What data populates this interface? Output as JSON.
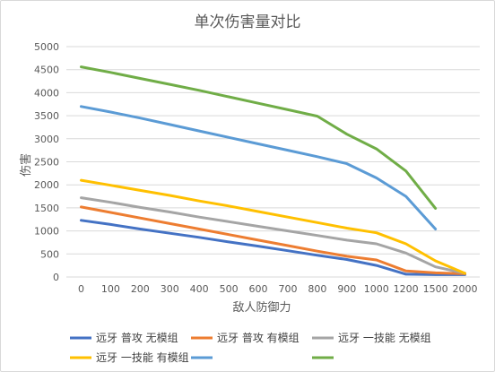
{
  "chart_data": {
    "type": "line",
    "title": "单次伤害量对比",
    "xlabel": "敌人防御力",
    "ylabel": "伤害",
    "categories": [
      "0",
      "100",
      "200",
      "300",
      "400",
      "500",
      "600",
      "700",
      "800",
      "900",
      "1000",
      "1200",
      "1500",
      "2000"
    ],
    "ylim": [
      0,
      5000
    ],
    "yticks": [
      0,
      500,
      1000,
      1500,
      2000,
      2500,
      3000,
      3500,
      4000,
      4500,
      5000
    ],
    "grid": true,
    "legend_position": "bottom",
    "series": [
      {
        "name": "远牙 普攻 无模组",
        "color": "#4472c4",
        "values": [
          1230,
          1140,
          1040,
          950,
          860,
          760,
          670,
          570,
          470,
          380,
          250,
          60,
          50,
          50
        ]
      },
      {
        "name": "远牙 普攻 有模组",
        "color": "#ed7d31",
        "values": [
          1520,
          1400,
          1280,
          1160,
          1040,
          920,
          800,
          680,
          560,
          450,
          370,
          130,
          90,
          70
        ]
      },
      {
        "name": "远牙 一技能 无模组",
        "color": "#a5a5a5",
        "values": [
          1720,
          1620,
          1510,
          1410,
          1300,
          1200,
          1100,
          1000,
          900,
          800,
          720,
          520,
          220,
          80
        ]
      },
      {
        "name": "远牙 一技能 有模组",
        "color": "#ffc000",
        "values": [
          2100,
          1990,
          1880,
          1770,
          1650,
          1540,
          1420,
          1300,
          1180,
          1060,
          960,
          720,
          350,
          80
        ]
      },
      {
        "name": "",
        "color": "#5b9bd5",
        "values": [
          3700,
          3580,
          3450,
          3310,
          3170,
          3030,
          2890,
          2750,
          2610,
          2460,
          2150,
          1750,
          1040,
          null
        ]
      },
      {
        "name": "",
        "color": "#70ad47",
        "values": [
          4560,
          4440,
          4310,
          4180,
          4050,
          3910,
          3770,
          3630,
          3490,
          3100,
          2780,
          2300,
          1490,
          null
        ]
      }
    ]
  }
}
